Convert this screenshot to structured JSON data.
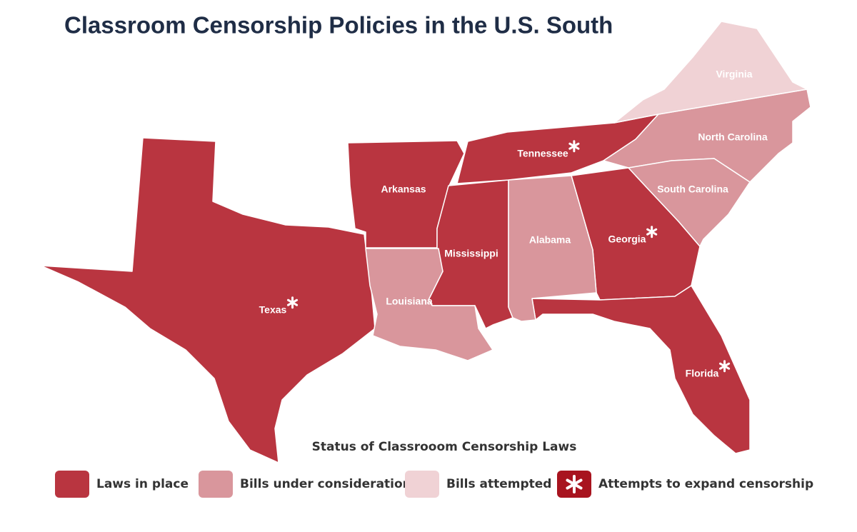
{
  "title": "Classroom Censorship Policies in the U.S. South",
  "legend": {
    "title": "Status of Classrooom Censorship Laws",
    "items": [
      {
        "label": "Laws in place",
        "color": "#b93540",
        "states": [
          "Texas",
          "Arkansas",
          "Mississippi",
          "Tennessee",
          "Georgia",
          "Florida"
        ]
      },
      {
        "label": "Bills under consideration",
        "color": "#d9969c",
        "states": [
          "Louisiana",
          "Alabama",
          "North Carolina",
          "South Carolina"
        ]
      },
      {
        "label": "Bills attempted",
        "color": "#f0d2d5",
        "states": [
          "Virginia"
        ]
      },
      {
        "label": "Attempts to expand censorship",
        "color": "#a8141f",
        "marker": "asterisk",
        "states": [
          "Texas",
          "Tennessee",
          "Georgia",
          "Florida"
        ]
      }
    ]
  }
}
